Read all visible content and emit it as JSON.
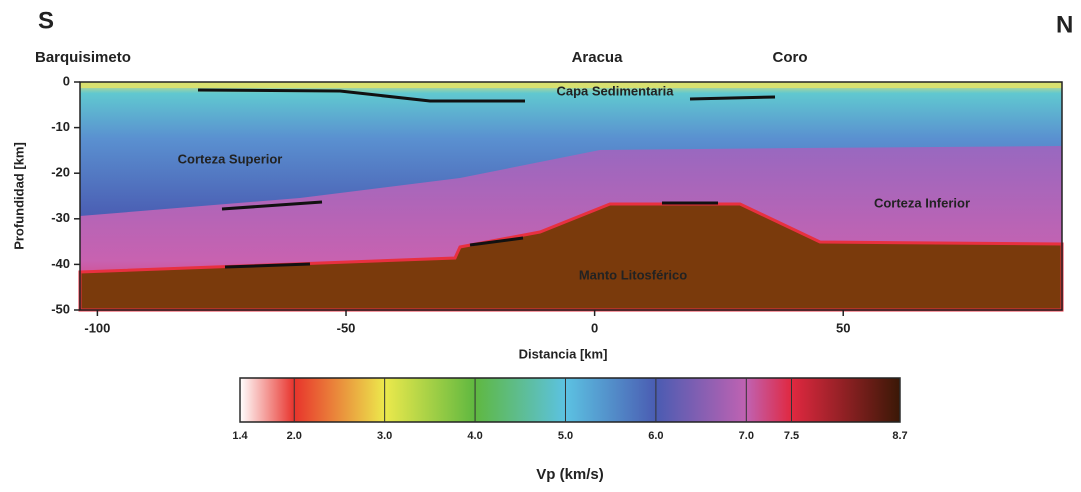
{
  "chart_data": {
    "type": "section",
    "corner_labels": [
      "S",
      "N"
    ],
    "places": [
      "Barquisimeto",
      "Aracua",
      "Coro"
    ],
    "regions": [
      "Capa Sedimentaria",
      "Corteza Superior",
      "Corteza Inferior",
      "Manto Litosférico"
    ],
    "xlabel": "Distancia [km]",
    "ylabel": "Profundidad [km]",
    "xlim": [
      -103.5,
      94
    ],
    "xticks": [
      -100,
      -50,
      0,
      50
    ],
    "ylim": [
      -50,
      0
    ],
    "yticks": [
      0,
      -10,
      -20,
      -30,
      -40,
      -50
    ],
    "grid": false,
    "colorbar": {
      "label": "Vp (km/s)",
      "clim": [
        1.4,
        8.7
      ],
      "ticks": [
        1.4,
        {
          "value": 2,
          "label": "2.0"
        },
        {
          "value": 3,
          "label": "3.0"
        },
        {
          "value": 4,
          "label": "4.0"
        },
        {
          "value": 5,
          "label": "5.0"
        },
        {
          "value": 6,
          "label": "6.0"
        },
        {
          "value": 7,
          "label": "7.0"
        },
        7.5,
        8.7
      ],
      "colors": [
        "#ffffff",
        "#e8332c",
        "#ece94c",
        "#5fb840",
        "#5cc2e2",
        "#4a5cb2",
        "#c062b2",
        "#e02840",
        "#3a1806"
      ]
    }
  }
}
